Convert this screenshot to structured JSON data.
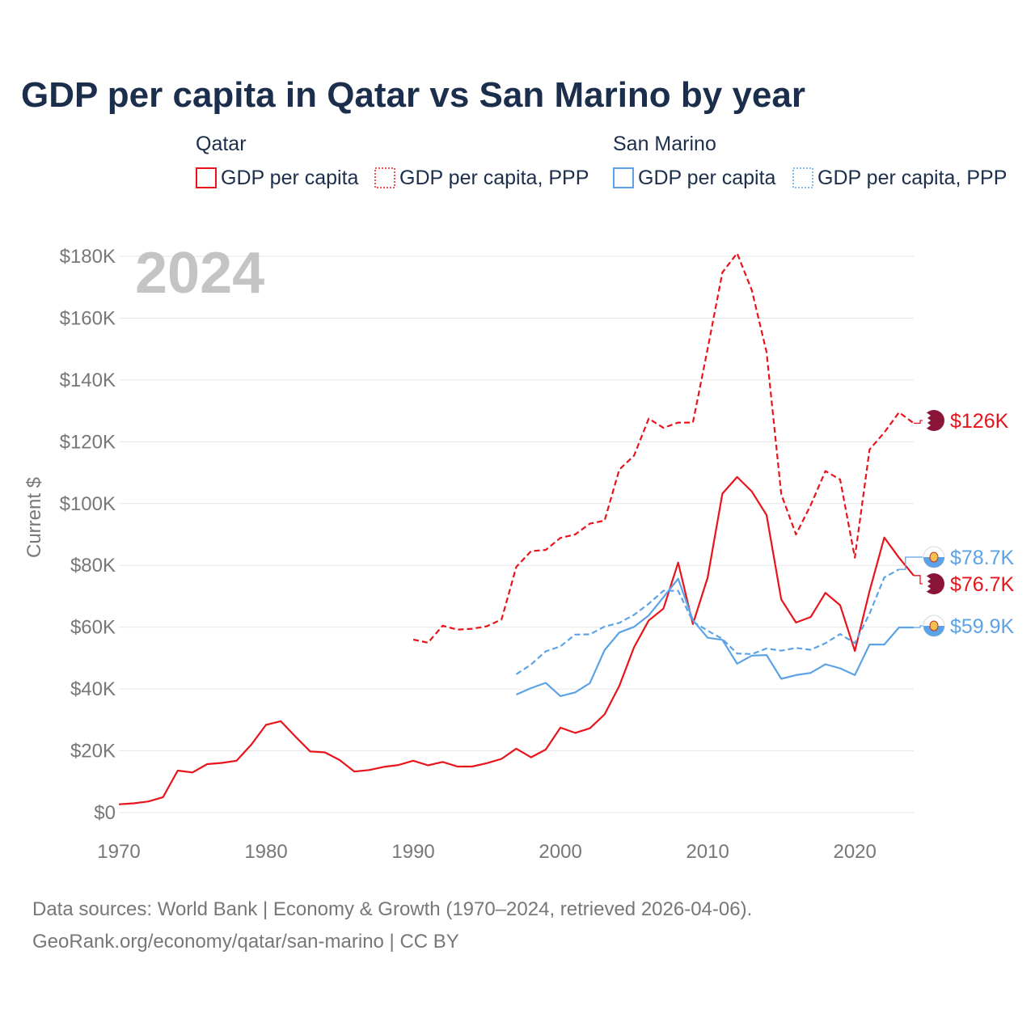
{
  "colors": {
    "qatar": "#e8131b",
    "san_marino": "#5ba3e6",
    "title": "#1b2e4b",
    "muted": "#777777",
    "year_bg": "#c4c4c4",
    "qatar_flag": "#8a1538"
  },
  "icons": {
    "qatar_flag": "qatar-flag-icon",
    "san_marino_flag": "san-marino-flag-icon"
  },
  "chart_data": {
    "type": "line",
    "title": "GDP per capita in Qatar vs San Marino by year",
    "background_year": "2024",
    "ylabel": "Current $",
    "xlabel": "",
    "xlim": [
      1970,
      2024
    ],
    "ylim": [
      0,
      180000
    ],
    "x_ticks": [
      {
        "value": 1970,
        "label": "1970"
      },
      {
        "value": 1980,
        "label": "1980"
      },
      {
        "value": 1990,
        "label": "1990"
      },
      {
        "value": 2000,
        "label": "2000"
      },
      {
        "value": 2010,
        "label": "2010"
      },
      {
        "value": 2020,
        "label": "2020"
      }
    ],
    "y_ticks": [
      {
        "value": 0,
        "label": "$0"
      },
      {
        "value": 20000,
        "label": "$20K"
      },
      {
        "value": 40000,
        "label": "$40K"
      },
      {
        "value": 60000,
        "label": "$60K"
      },
      {
        "value": 80000,
        "label": "$80K"
      },
      {
        "value": 100000,
        "label": "$100K"
      },
      {
        "value": 120000,
        "label": "$120K"
      },
      {
        "value": 140000,
        "label": "$140K"
      },
      {
        "value": 160000,
        "label": "$160K"
      },
      {
        "value": 180000,
        "label": "$180K"
      }
    ],
    "legend": {
      "groups": [
        {
          "label": "Qatar",
          "items": [
            {
              "label": "GDP per capita",
              "series": "qatar_gdp"
            },
            {
              "label": "GDP per capita, PPP",
              "series": "qatar_ppp"
            }
          ]
        },
        {
          "label": "San Marino",
          "items": [
            {
              "label": "GDP per capita",
              "series": "sm_gdp"
            },
            {
              "label": "GDP per capita, PPP",
              "series": "sm_ppp"
            }
          ]
        }
      ]
    },
    "series": [
      {
        "id": "qatar_gdp",
        "name": "Qatar GDP per capita",
        "country": "qatar",
        "style": "solid",
        "end_label": "$76.7K",
        "end_value": 76700,
        "points": [
          [
            1970,
            2700
          ],
          [
            1971,
            3000
          ],
          [
            1972,
            3600
          ],
          [
            1973,
            5000
          ],
          [
            1974,
            13600
          ],
          [
            1975,
            13000
          ],
          [
            1976,
            15700
          ],
          [
            1977,
            16100
          ],
          [
            1978,
            16800
          ],
          [
            1979,
            22000
          ],
          [
            1980,
            28400
          ],
          [
            1981,
            29600
          ],
          [
            1982,
            24600
          ],
          [
            1983,
            19800
          ],
          [
            1984,
            19500
          ],
          [
            1985,
            17000
          ],
          [
            1986,
            13300
          ],
          [
            1987,
            13800
          ],
          [
            1988,
            14800
          ],
          [
            1989,
            15400
          ],
          [
            1990,
            16800
          ],
          [
            1991,
            15300
          ],
          [
            1992,
            16400
          ],
          [
            1993,
            14900
          ],
          [
            1994,
            14900
          ],
          [
            1995,
            16000
          ],
          [
            1996,
            17400
          ],
          [
            1997,
            20700
          ],
          [
            1998,
            17900
          ],
          [
            1999,
            20400
          ],
          [
            2000,
            27500
          ],
          [
            2001,
            25800
          ],
          [
            2002,
            27300
          ],
          [
            2003,
            31800
          ],
          [
            2004,
            41000
          ],
          [
            2005,
            53500
          ],
          [
            2006,
            62200
          ],
          [
            2007,
            66000
          ],
          [
            2008,
            80900
          ],
          [
            2009,
            61000
          ],
          [
            2010,
            76000
          ],
          [
            2011,
            103200
          ],
          [
            2012,
            108600
          ],
          [
            2013,
            103900
          ],
          [
            2014,
            96300
          ],
          [
            2015,
            69000
          ],
          [
            2016,
            61500
          ],
          [
            2017,
            63300
          ],
          [
            2018,
            71100
          ],
          [
            2019,
            67100
          ],
          [
            2020,
            52300
          ],
          [
            2021,
            71700
          ],
          [
            2022,
            89000
          ],
          [
            2023,
            82500
          ],
          [
            2024,
            76700
          ]
        ]
      },
      {
        "id": "qatar_ppp",
        "name": "Qatar GDP per capita, PPP",
        "country": "qatar",
        "style": "dashed",
        "end_label": "$126K",
        "end_value": 126000,
        "points": [
          [
            1990,
            56000
          ],
          [
            1991,
            55000
          ],
          [
            1992,
            60500
          ],
          [
            1993,
            59200
          ],
          [
            1994,
            59500
          ],
          [
            1995,
            60300
          ],
          [
            1996,
            62500
          ],
          [
            1997,
            79500
          ],
          [
            1998,
            84600
          ],
          [
            1999,
            85000
          ],
          [
            2000,
            88900
          ],
          [
            2001,
            90000
          ],
          [
            2002,
            93500
          ],
          [
            2003,
            94500
          ],
          [
            2004,
            111000
          ],
          [
            2005,
            115500
          ],
          [
            2006,
            127500
          ],
          [
            2007,
            124500
          ],
          [
            2008,
            126200
          ],
          [
            2009,
            126200
          ],
          [
            2010,
            150000
          ],
          [
            2011,
            174800
          ],
          [
            2012,
            181000
          ],
          [
            2013,
            169000
          ],
          [
            2014,
            149000
          ],
          [
            2015,
            103000
          ],
          [
            2016,
            90000
          ],
          [
            2017,
            99500
          ],
          [
            2018,
            110500
          ],
          [
            2019,
            107800
          ],
          [
            2020,
            82500
          ],
          [
            2021,
            117500
          ],
          [
            2022,
            123000
          ],
          [
            2023,
            129500
          ],
          [
            2024,
            126000
          ]
        ]
      },
      {
        "id": "sm_gdp",
        "name": "San Marino GDP per capita",
        "country": "san_marino",
        "style": "solid",
        "end_label": "$59.9K",
        "end_value": 59900,
        "points": [
          [
            1997,
            38200
          ],
          [
            1998,
            40300
          ],
          [
            1999,
            42000
          ],
          [
            2000,
            37700
          ],
          [
            2001,
            38900
          ],
          [
            2002,
            41900
          ],
          [
            2003,
            52600
          ],
          [
            2004,
            58300
          ],
          [
            2005,
            60100
          ],
          [
            2006,
            63800
          ],
          [
            2007,
            69700
          ],
          [
            2008,
            75700
          ],
          [
            2009,
            62300
          ],
          [
            2010,
            56600
          ],
          [
            2011,
            55900
          ],
          [
            2012,
            48200
          ],
          [
            2013,
            50800
          ],
          [
            2014,
            51000
          ],
          [
            2015,
            43300
          ],
          [
            2016,
            44500
          ],
          [
            2017,
            45200
          ],
          [
            2018,
            48000
          ],
          [
            2019,
            46700
          ],
          [
            2020,
            44500
          ],
          [
            2021,
            54400
          ],
          [
            2022,
            54400
          ],
          [
            2023,
            59900
          ],
          [
            2024,
            59900
          ]
        ]
      },
      {
        "id": "sm_ppp",
        "name": "San Marino GDP per capita, PPP",
        "country": "san_marino",
        "style": "dashed",
        "end_label": "$78.7K",
        "end_value": 78700,
        "points": [
          [
            1997,
            44800
          ],
          [
            1998,
            47900
          ],
          [
            1999,
            52200
          ],
          [
            2000,
            53800
          ],
          [
            2001,
            57600
          ],
          [
            2002,
            57700
          ],
          [
            2003,
            60200
          ],
          [
            2004,
            61400
          ],
          [
            2005,
            64000
          ],
          [
            2006,
            67600
          ],
          [
            2007,
            71800
          ],
          [
            2008,
            71800
          ],
          [
            2009,
            61800
          ],
          [
            2010,
            58900
          ],
          [
            2011,
            56200
          ],
          [
            2012,
            51500
          ],
          [
            2013,
            51300
          ],
          [
            2014,
            53100
          ],
          [
            2015,
            52400
          ],
          [
            2016,
            53300
          ],
          [
            2017,
            52700
          ],
          [
            2018,
            54800
          ],
          [
            2019,
            57800
          ],
          [
            2020,
            54800
          ],
          [
            2021,
            64400
          ],
          [
            2022,
            76100
          ],
          [
            2023,
            78700
          ]
        ]
      }
    ]
  },
  "footer": {
    "line1": "Data sources: World Bank | Economy & Growth (1970–2024, retrieved 2026-04-06).",
    "line2": "GeoRank.org/economy/qatar/san-marino | CC BY"
  }
}
